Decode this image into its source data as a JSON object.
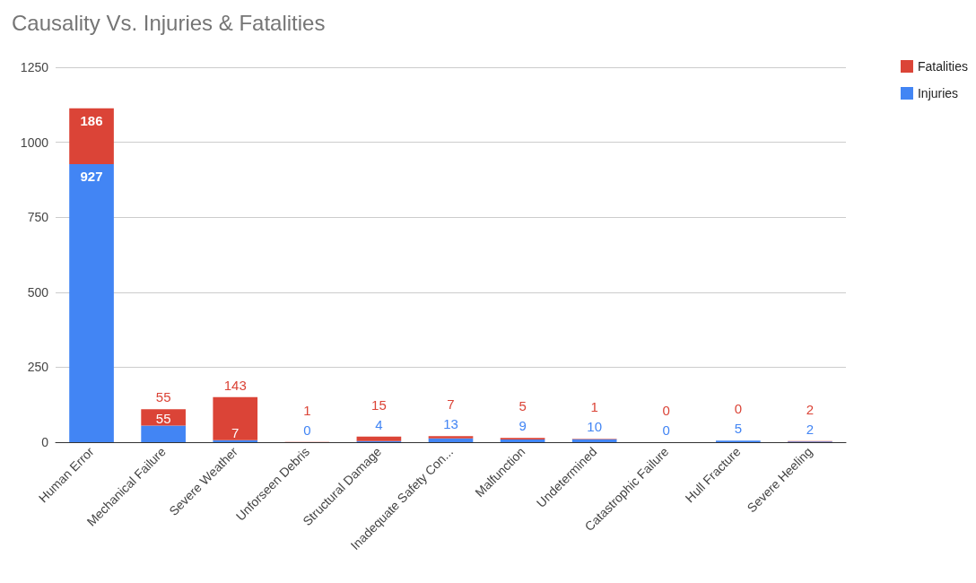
{
  "chart_data": {
    "type": "bar",
    "title": "Causality Vs. Injuries & Fatalities",
    "stacked": true,
    "categories": [
      "Human Error",
      "Mechanical Failure",
      "Severe Weather",
      "Unforseen Debris",
      "Structural Damage",
      "Inadequate Safety Con...",
      "Malfunction",
      "Undetermined",
      "Catastrophic Failure",
      "Hull Fracture",
      "Severe Heeling"
    ],
    "series": [
      {
        "name": "Injuries",
        "color": "#4285f4",
        "values": [
          927,
          55,
          7,
          0,
          4,
          13,
          9,
          10,
          0,
          5,
          2
        ]
      },
      {
        "name": "Fatalities",
        "color": "#db4437",
        "values": [
          186,
          55,
          143,
          1,
          15,
          7,
          5,
          1,
          0,
          0,
          2
        ]
      }
    ],
    "ylim": [
      0,
      1250
    ],
    "yticks": [
      0,
      250,
      500,
      750,
      1000,
      1250
    ],
    "grid": "y",
    "legend": "top right",
    "data_labels": true
  }
}
